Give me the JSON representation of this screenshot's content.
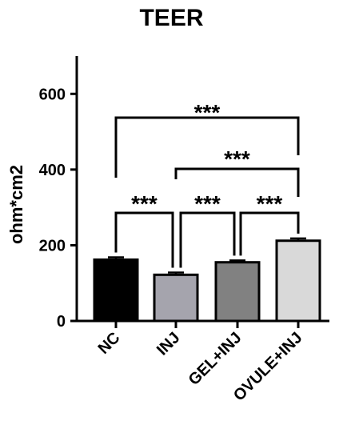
{
  "chart_data": {
    "type": "bar",
    "title": "TEER",
    "xlabel": "",
    "ylabel": "ohm*cm2",
    "categories": [
      "NC",
      "INJ",
      "GEL+INJ",
      "OVULE+INJ"
    ],
    "values": [
      162,
      122,
      155,
      212
    ],
    "errors": [
      6,
      6,
      5,
      6
    ],
    "colors": [
      "#000000",
      "#a5a4ad",
      "#818181",
      "#d9d9d9"
    ],
    "ylim": [
      0,
      700
    ],
    "yticks": [
      0,
      200,
      400,
      600
    ],
    "grid": false,
    "significance": [
      {
        "from": 0,
        "to": 3,
        "label": "***"
      },
      {
        "from": 1,
        "to": 3,
        "label": "***"
      },
      {
        "from": 0,
        "to": 1,
        "label": "***"
      },
      {
        "from": 1,
        "to": 2,
        "label": "***"
      },
      {
        "from": 2,
        "to": 3,
        "label": "***"
      }
    ]
  }
}
